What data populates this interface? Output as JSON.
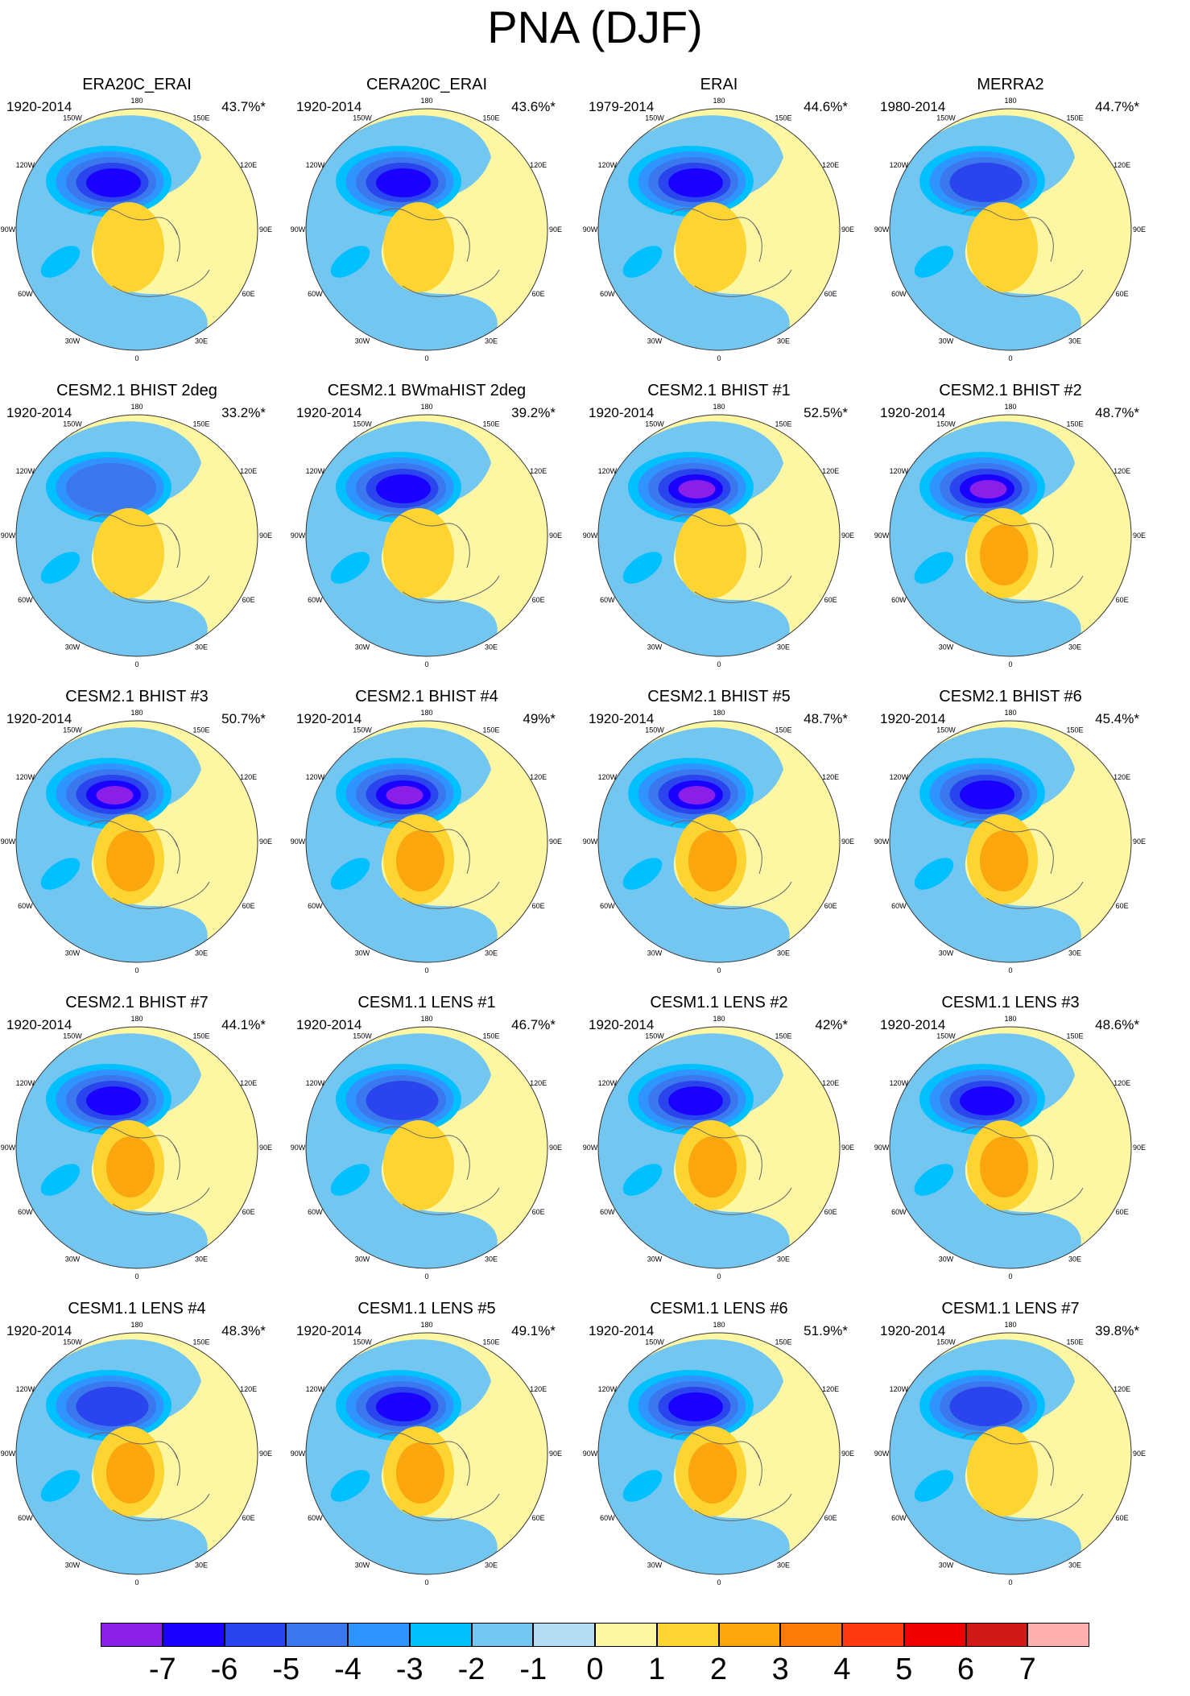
{
  "figure": {
    "title": "PNA (DJF)"
  },
  "chart_data": {
    "type": "contour-map",
    "projection": "north polar stereographic",
    "title": "PNA (DJF)",
    "longitude_labels": [
      "180",
      "150E",
      "120E",
      "90E",
      "60E",
      "30E",
      "0",
      "30W",
      "60W",
      "90W",
      "120W",
      "150W"
    ],
    "colorbar": {
      "ticks": [
        "-7",
        "-6",
        "-5",
        "-4",
        "-3",
        "-2",
        "-1",
        "0",
        "1",
        "2",
        "3",
        "4",
        "5",
        "6",
        "7"
      ],
      "colors": [
        "#8a20e8",
        "#1a00ff",
        "#2a44ee",
        "#3b78ee",
        "#2f94ff",
        "#00c0ff",
        "#72c6f0",
        "#b4dcf2",
        "#fdf7a4",
        "#fdd432",
        "#fca60e",
        "#fc7a08",
        "#ff3a10",
        "#ee0000",
        "#d01a1a",
        "#ffb0b0"
      ]
    },
    "panels": [
      {
        "title": "ERA20C_ERAI",
        "period": "1920-2014",
        "variance": "43.7%*",
        "min_level": -6,
        "max_level": 2
      },
      {
        "title": "CERA20C_ERAI",
        "period": "1920-2014",
        "variance": "43.6%*",
        "min_level": -6,
        "max_level": 2
      },
      {
        "title": "ERAI",
        "period": "1979-2014",
        "variance": "44.6%*",
        "min_level": -6,
        "max_level": 2
      },
      {
        "title": "MERRA2",
        "period": "1980-2014",
        "variance": "44.7%*",
        "min_level": -5,
        "max_level": 2
      },
      {
        "title": "CESM2.1 BHIST 2deg",
        "period": "1920-2014",
        "variance": "33.2%*",
        "min_level": -4,
        "max_level": 2
      },
      {
        "title": "CESM2.1 BWmaHIST 2deg",
        "period": "1920-2014",
        "variance": "39.2%*",
        "min_level": -6,
        "max_level": 2
      },
      {
        "title": "CESM2.1 BHIST #1",
        "period": "1920-2014",
        "variance": "52.5%*",
        "min_level": -7,
        "max_level": 2
      },
      {
        "title": "CESM2.1 BHIST #2",
        "period": "1920-2014",
        "variance": "48.7%*",
        "min_level": -7,
        "max_level": 3
      },
      {
        "title": "CESM2.1 BHIST #3",
        "period": "1920-2014",
        "variance": "50.7%*",
        "min_level": -7,
        "max_level": 3
      },
      {
        "title": "CESM2.1 BHIST #4",
        "period": "1920-2014",
        "variance": "49%*",
        "min_level": -7,
        "max_level": 3
      },
      {
        "title": "CESM2.1 BHIST #5",
        "period": "1920-2014",
        "variance": "48.7%*",
        "min_level": -7,
        "max_level": 3
      },
      {
        "title": "CESM2.1 BHIST #6",
        "period": "1920-2014",
        "variance": "45.4%*",
        "min_level": -6,
        "max_level": 3
      },
      {
        "title": "CESM2.1 BHIST #7",
        "period": "1920-2014",
        "variance": "44.1%*",
        "min_level": -6,
        "max_level": 3
      },
      {
        "title": "CESM1.1 LENS #1",
        "period": "1920-2014",
        "variance": "46.7%*",
        "min_level": -5,
        "max_level": 2
      },
      {
        "title": "CESM1.1 LENS #2",
        "period": "1920-2014",
        "variance": "42%*",
        "min_level": -6,
        "max_level": 3
      },
      {
        "title": "CESM1.1 LENS #3",
        "period": "1920-2014",
        "variance": "48.6%*",
        "min_level": -6,
        "max_level": 3
      },
      {
        "title": "CESM1.1 LENS #4",
        "period": "1920-2014",
        "variance": "48.3%*",
        "min_level": -5,
        "max_level": 3
      },
      {
        "title": "CESM1.1 LENS #5",
        "period": "1920-2014",
        "variance": "49.1%*",
        "min_level": -6,
        "max_level": 3
      },
      {
        "title": "CESM1.1 LENS #6",
        "period": "1920-2014",
        "variance": "51.9%*",
        "min_level": -6,
        "max_level": 3
      },
      {
        "title": "CESM1.1 LENS #7",
        "period": "1920-2014",
        "variance": "39.8%*",
        "min_level": -5,
        "max_level": 2
      }
    ]
  }
}
